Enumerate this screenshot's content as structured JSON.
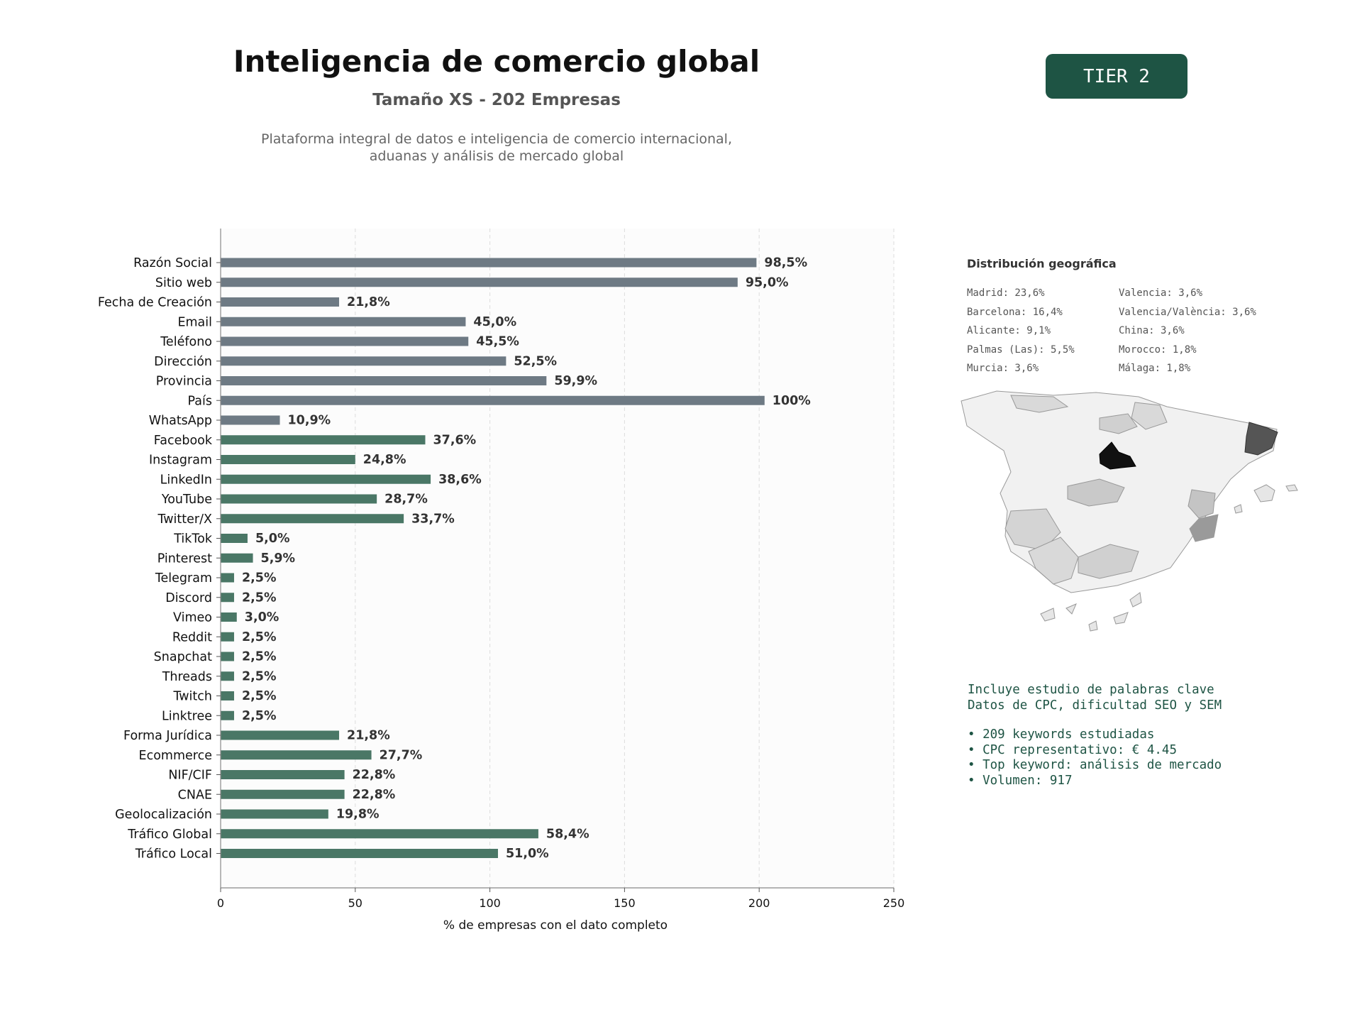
{
  "header": {
    "title": "Inteligencia de comercio global",
    "subtitle": "Tamaño XS - 202 Empresas",
    "description_lines": [
      "Plataforma integral de datos e inteligencia de comercio internacional,",
      "aduanas y análisis de mercado global"
    ],
    "tier_badge": "TIER 2"
  },
  "colors": {
    "gray_bar": "#6e7a84",
    "green_bar": "#4a7766",
    "accent_dark_green": "#1e5444"
  },
  "chart_data": {
    "type": "bar",
    "orientation": "horizontal",
    "xlabel": "% de empresas con el dato completo",
    "xlim": [
      0,
      250
    ],
    "xticks": [
      0,
      50,
      100,
      150,
      200,
      250
    ],
    "grid": "vertical dashed",
    "categories": [
      "Razón Social",
      "Sitio web",
      "Fecha de Creación",
      "Email",
      "Teléfono",
      "Dirección",
      "Provincia",
      "País",
      "WhatsApp",
      "Facebook",
      "Instagram",
      "LinkedIn",
      "YouTube",
      "Twitter/X",
      "TikTok",
      "Pinterest",
      "Telegram",
      "Discord",
      "Vimeo",
      "Reddit",
      "Snapchat",
      "Threads",
      "Twitch",
      "Linktree",
      "Forma Jurídica",
      "Ecommerce",
      "NIF/CIF",
      "CNAE",
      "Geolocalización",
      "Tráfico Global",
      "Tráfico Local"
    ],
    "values": [
      199,
      192,
      44,
      91,
      92,
      106,
      121,
      202,
      22,
      76,
      50,
      78,
      58,
      68,
      10,
      12,
      5,
      5,
      6,
      5,
      5,
      5,
      5,
      5,
      44,
      56,
      46,
      46,
      40,
      118,
      103
    ],
    "labels": [
      "98,5%",
      "95,0%",
      "21,8%",
      "45,0%",
      "45,5%",
      "52,5%",
      "59,9%",
      "100%",
      "10,9%",
      "37,6%",
      "24,8%",
      "38,6%",
      "28,7%",
      "33,7%",
      "5,0%",
      "5,9%",
      "2,5%",
      "2,5%",
      "3,0%",
      "2,5%",
      "2,5%",
      "2,5%",
      "2,5%",
      "2,5%",
      "21,8%",
      "27,7%",
      "22,8%",
      "22,8%",
      "19,8%",
      "58,4%",
      "51,0%"
    ],
    "bar_colors": [
      "gray",
      "gray",
      "gray",
      "gray",
      "gray",
      "gray",
      "gray",
      "gray",
      "gray",
      "green",
      "green",
      "green",
      "green",
      "green",
      "green",
      "green",
      "green",
      "green",
      "green",
      "green",
      "green",
      "green",
      "green",
      "green",
      "green",
      "green",
      "green",
      "green",
      "green",
      "green",
      "green"
    ]
  },
  "geo": {
    "title": "Distribución geográfica",
    "left": [
      "Madrid: 23,6%",
      "Barcelona: 16,4%",
      "Alicante: 9,1%",
      "Palmas (Las): 5,5%",
      "Murcia: 3,6%"
    ],
    "right": [
      "Valencia: 3,6%",
      "Valencia/València: 3,6%",
      "China: 3,6%",
      "Morocco: 1,8%",
      "Málaga: 1,8%"
    ],
    "map_icon": "spain-provinces-map"
  },
  "keywords": {
    "intro": [
      "Incluye estudio de palabras clave",
      "Datos de CPC, dificultad SEO y SEM"
    ],
    "bullets": [
      "• 209 keywords estudiadas",
      "• CPC representativo: € 4.45",
      "• Top keyword: análisis de mercado",
      "• Volumen: 917"
    ]
  }
}
